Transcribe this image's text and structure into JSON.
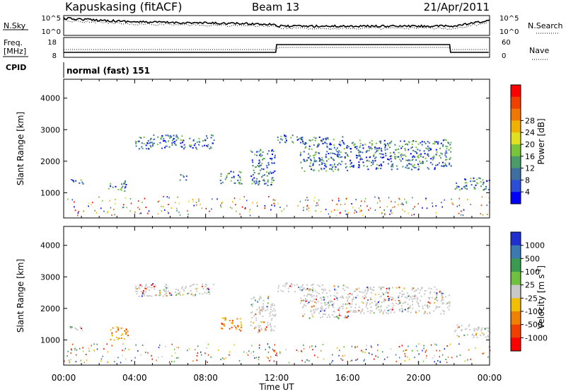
{
  "header": {
    "station": "Kapuskasing (fitACF)",
    "beam": "Beam 13",
    "date": "21/Apr/2011"
  },
  "top_panels": {
    "nsky": {
      "label": "N.Sky",
      "ticks": [
        "10^5",
        "10^0"
      ],
      "right_label": "N.Search",
      "right_ticks": [
        "10^5",
        "10^0"
      ]
    },
    "freq": {
      "label_line1": "Freq.",
      "label_line2": "[MHz]",
      "ticks": [
        "18",
        "8"
      ],
      "right_label": "Nave",
      "right_ticks": [
        "60",
        "0"
      ]
    },
    "cpid": {
      "label": "CPID",
      "value": "normal (fast) 151"
    }
  },
  "chart_data": [
    {
      "type": "heatmap",
      "name": "power",
      "ylabel": "Slant Range [km]",
      "xlabel": "",
      "xlim_hours": [
        0,
        24
      ],
      "ylim": [
        200,
        4600
      ],
      "yticks": [
        "1000",
        "2000",
        "3000",
        "4000"
      ],
      "colorbar": {
        "label": "Power [dB]",
        "ticks": [
          "4",
          "8",
          "12",
          "16",
          "20",
          "24",
          "28"
        ],
        "colors": [
          "#0000ff",
          "#2a4fd6",
          "#3f6fa0",
          "#4a9a6a",
          "#7ac43a",
          "#e0e020",
          "#f0b000",
          "#f07800",
          "#f04000",
          "#ff0000"
        ]
      },
      "echo_bands": [
        {
          "t_start": 0.2,
          "t_end": 1.2,
          "r_start": 1300,
          "r_end": 1450
        },
        {
          "t_start": 2.5,
          "t_end": 3.5,
          "r_start": 1050,
          "r_end": 1400
        },
        {
          "t_start": 4.0,
          "t_end": 8.5,
          "r_start": 2400,
          "r_end": 2850
        },
        {
          "t_start": 6.5,
          "t_end": 7.0,
          "r_start": 1400,
          "r_end": 1600
        },
        {
          "t_start": 8.8,
          "t_end": 10.0,
          "r_start": 1300,
          "r_end": 1700
        },
        {
          "t_start": 10.5,
          "t_end": 11.9,
          "r_start": 1250,
          "r_end": 2400
        },
        {
          "t_start": 12.0,
          "t_end": 13.5,
          "r_start": 2600,
          "r_end": 2850
        },
        {
          "t_start": 13.3,
          "t_end": 16.0,
          "r_start": 1700,
          "r_end": 2800
        },
        {
          "t_start": 16.0,
          "t_end": 21.8,
          "r_start": 1750,
          "r_end": 2700
        },
        {
          "t_start": 22.0,
          "t_end": 24.0,
          "r_start": 1100,
          "r_end": 1500
        }
      ]
    },
    {
      "type": "heatmap",
      "name": "velocity",
      "ylabel": "Slant Range [km]",
      "xlabel": "Time UT",
      "xlim_hours": [
        0,
        24
      ],
      "ylim": [
        200,
        4600
      ],
      "xticks": [
        "00:00",
        "04:00",
        "08:00",
        "12:00",
        "16:00",
        "20:00",
        "00:00"
      ],
      "yticks": [
        "1000",
        "2000",
        "3000",
        "4000"
      ],
      "colorbar": {
        "label": "Velocity [m s",
        "label_sup": "-1",
        "label_end": "]",
        "ticks": [
          "1000",
          "500",
          "100",
          "25",
          "-25",
          "-100",
          "-500",
          "-1000"
        ],
        "colors": [
          "#2030d0",
          "#3a7ab0",
          "#3a9a50",
          "#70c040",
          "#c8c8c8",
          "#f0c000",
          "#f08000",
          "#f04000",
          "#ff0000"
        ]
      },
      "echo_bands": [
        {
          "t_start": 0.2,
          "t_end": 1.2,
          "r_start": 1300,
          "r_end": 1450
        },
        {
          "t_start": 2.6,
          "t_end": 3.6,
          "r_start": 1000,
          "r_end": 1450
        },
        {
          "t_start": 4.0,
          "t_end": 8.5,
          "r_start": 2400,
          "r_end": 2800
        },
        {
          "t_start": 8.8,
          "t_end": 10.0,
          "r_start": 1300,
          "r_end": 1750
        },
        {
          "t_start": 10.5,
          "t_end": 11.9,
          "r_start": 1250,
          "r_end": 2400
        },
        {
          "t_start": 12.0,
          "t_end": 13.5,
          "r_start": 2550,
          "r_end": 2850
        },
        {
          "t_start": 13.3,
          "t_end": 16.0,
          "r_start": 1700,
          "r_end": 2800
        },
        {
          "t_start": 16.0,
          "t_end": 21.8,
          "r_start": 1850,
          "r_end": 2700
        },
        {
          "t_start": 22.0,
          "t_end": 24.0,
          "r_start": 1100,
          "r_end": 1500
        }
      ]
    }
  ]
}
